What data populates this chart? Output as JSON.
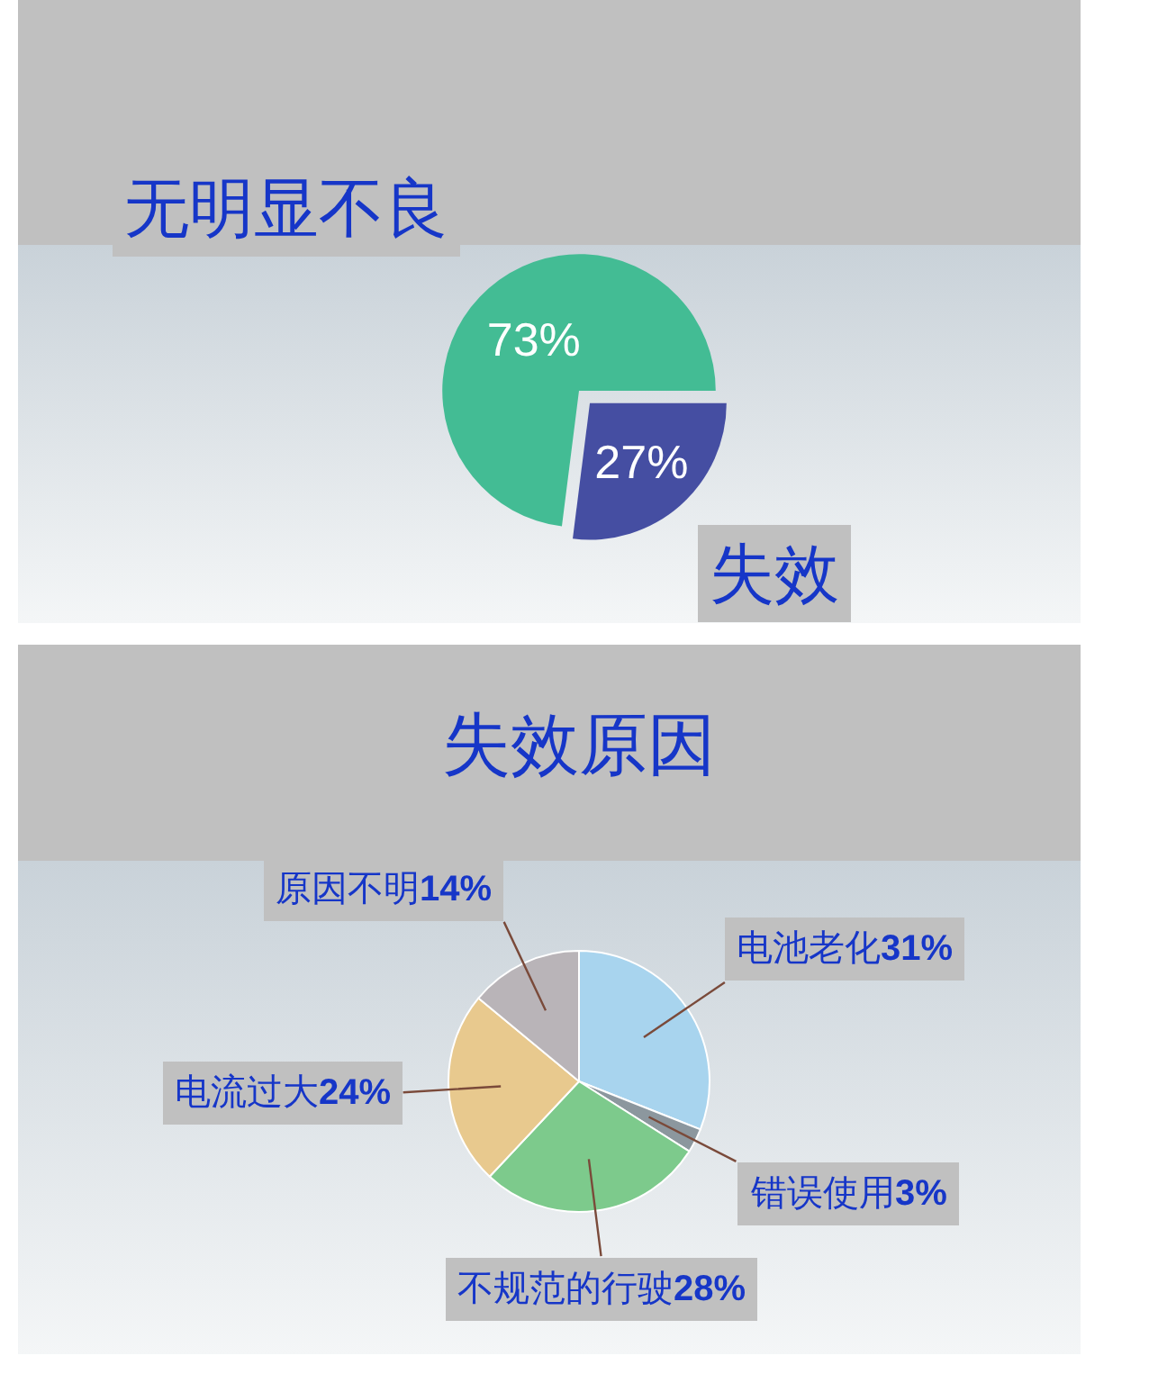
{
  "chart_data": [
    {
      "type": "pie",
      "categories": [
        "无明显不良",
        "失效"
      ],
      "values": [
        73,
        27
      ],
      "value_labels": [
        "73%",
        "27%"
      ],
      "colors": [
        "#43bc94",
        "#454ea2"
      ]
    },
    {
      "type": "pie",
      "title": "失效原因",
      "categories": [
        "电池老化",
        "错误使用",
        "不规范的行驶",
        "电流过大",
        "原因不明"
      ],
      "values": [
        31,
        3,
        28,
        24,
        14
      ],
      "value_labels": [
        "31%",
        "3%",
        "28%",
        "24%",
        "14%"
      ],
      "colors": [
        "#a8d4ee",
        "#8c979e",
        "#7dca8c",
        "#e8c98e",
        "#b9b4b8"
      ]
    }
  ]
}
